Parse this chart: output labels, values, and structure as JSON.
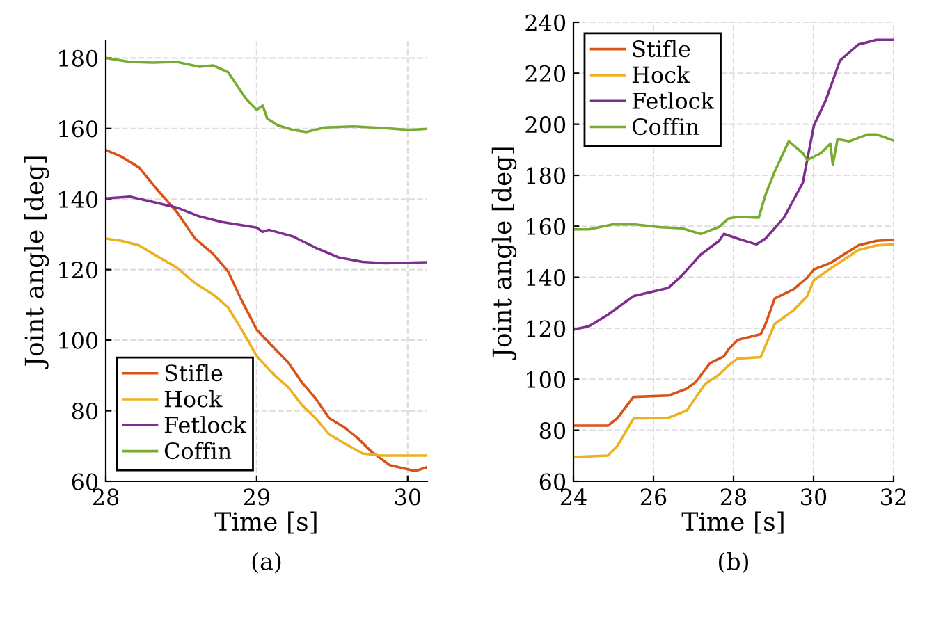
{
  "chart_data": [
    {
      "type": "line",
      "xlabel": "Time [s]",
      "ylabel": "Joint angle [deg]",
      "annotations": [
        "(a)"
      ],
      "xlim": [
        28,
        30.13
      ],
      "ylim": [
        60,
        185
      ],
      "xticks": [
        28,
        29,
        30
      ],
      "yticks": [
        60,
        80,
        100,
        120,
        140,
        160,
        180
      ],
      "grid": true,
      "legend": "bottom left",
      "line_style": "solid",
      "series": [
        {
          "name": "Stifle",
          "color": "#d95319",
          "x": [
            28,
            28.1,
            28.22,
            28.34,
            28.47,
            28.59,
            28.71,
            28.81,
            28.9,
            29,
            29.11,
            29.21,
            29.3,
            29.39,
            29.48,
            29.58,
            29.67,
            29.76,
            29.88,
            30.01,
            30.05,
            30.12
          ],
          "values": [
            153.9,
            152.1,
            149,
            142.7,
            136.4,
            128.9,
            124.5,
            119.5,
            111.3,
            103,
            98,
            93.6,
            88,
            83.5,
            77.9,
            75.3,
            72.2,
            68.4,
            64.6,
            63.3,
            62.9,
            63.9
          ]
        },
        {
          "name": "Hock",
          "color": "#edb120",
          "x": [
            28,
            28.1,
            28.22,
            28.34,
            28.47,
            28.59,
            28.71,
            28.81,
            28.9,
            29,
            29.11,
            29.21,
            29.3,
            29.39,
            29.48,
            29.58,
            29.7,
            29.82,
            30.12
          ],
          "values": [
            128.8,
            128.2,
            126.9,
            123.8,
            120.6,
            116.2,
            113,
            109.3,
            103,
            95.5,
            90.4,
            86.6,
            81.6,
            77.9,
            73.3,
            70.8,
            67.9,
            67.3,
            67.3
          ]
        },
        {
          "name": "Fetlock",
          "color": "#7e2f8e",
          "x": [
            28,
            28.16,
            28.31,
            28.47,
            28.62,
            28.77,
            29,
            29.04,
            29.08,
            29.24,
            29.39,
            29.54,
            29.7,
            29.85,
            30.12
          ],
          "values": [
            140.2,
            140.7,
            139.2,
            137.6,
            135.1,
            133.5,
            131.9,
            130.7,
            131.3,
            129.4,
            126.2,
            123.5,
            122.2,
            121.8,
            122.1
          ]
        },
        {
          "name": "Coffin",
          "color": "#77ac30",
          "x": [
            28,
            28.16,
            28.31,
            28.47,
            28.62,
            28.71,
            28.81,
            28.87,
            28.93,
            29,
            29.04,
            29.07,
            29.14,
            29.24,
            29.33,
            29.45,
            29.64,
            29.85,
            30.01,
            30.12
          ],
          "values": [
            180,
            178.9,
            178.7,
            178.9,
            177.5,
            177.9,
            176,
            172.2,
            168.4,
            165.3,
            166.5,
            162.8,
            160.9,
            159.6,
            159,
            160.3,
            160.6,
            160.1,
            159.6,
            159.9
          ]
        }
      ]
    },
    {
      "type": "line",
      "xlabel": "Time [s]",
      "ylabel": "Joint angle [deg]",
      "annotations": [
        "(b)"
      ],
      "xlim": [
        24,
        32
      ],
      "ylim": [
        60,
        240
      ],
      "xticks": [
        24,
        26,
        28,
        30,
        32
      ],
      "yticks": [
        60,
        80,
        100,
        120,
        140,
        160,
        180,
        200,
        220,
        240
      ],
      "grid": true,
      "legend": "top left",
      "line_style": "solid",
      "series": [
        {
          "name": "Stifle",
          "color": "#d95319",
          "x": [
            24,
            24.86,
            25.09,
            25.5,
            26.37,
            26.83,
            27.06,
            27.41,
            27.76,
            27.87,
            28.1,
            28.68,
            28.8,
            29.03,
            29.5,
            29.84,
            30.01,
            30.42,
            31.12,
            31.58,
            32
          ],
          "values": [
            81.8,
            81.8,
            84.6,
            93.1,
            93.6,
            96.3,
            99,
            106.3,
            109,
            111.7,
            115.4,
            117.7,
            121.7,
            131.7,
            135.3,
            139.8,
            143.1,
            145.6,
            152.5,
            154.3,
            154.7
          ]
        },
        {
          "name": "Hock",
          "color": "#edb120",
          "x": [
            24,
            24.86,
            25.09,
            25.5,
            26.37,
            26.83,
            27.29,
            27.64,
            27.87,
            28.1,
            28.68,
            29.03,
            29.5,
            29.84,
            30.01,
            30.42,
            31.12,
            31.58,
            32
          ],
          "values": [
            69.5,
            70.1,
            73.7,
            84.6,
            84.9,
            87.7,
            98.2,
            101.8,
            105.4,
            108.1,
            108.7,
            121.7,
            127.1,
            132.6,
            138.9,
            143.4,
            150.7,
            152.5,
            152.9
          ]
        },
        {
          "name": "Fetlock",
          "color": "#7e2f8e",
          "x": [
            24,
            24.39,
            24.86,
            25.5,
            26.37,
            26.71,
            27.18,
            27.64,
            27.76,
            28.1,
            28.57,
            28.8,
            29.26,
            29.73,
            30.01,
            30.31,
            30.66,
            31.12,
            31.58,
            32
          ],
          "values": [
            119.5,
            120.8,
            125.3,
            132.6,
            135.8,
            140.7,
            148.9,
            154.3,
            157,
            155.2,
            152.9,
            155.2,
            163.4,
            177,
            199.6,
            209.6,
            225,
            231.3,
            233.1,
            233.1
          ]
        },
        {
          "name": "Coffin",
          "color": "#77ac30",
          "x": [
            24,
            24.39,
            24.97,
            25.55,
            26.13,
            26.71,
            27.18,
            27.64,
            27.87,
            28.1,
            28.63,
            28.8,
            29.03,
            29.38,
            29.73,
            29.84,
            30.19,
            30.42,
            30.48,
            30.6,
            30.89,
            31.35,
            31.58,
            32
          ],
          "values": [
            158.8,
            158.8,
            160.7,
            160.7,
            159.7,
            159.2,
            157,
            159.7,
            163,
            163.7,
            163.4,
            172.4,
            181.5,
            193.3,
            188.7,
            186,
            188.7,
            192.4,
            184.2,
            194.2,
            193.3,
            196,
            196,
            193.6
          ]
        }
      ]
    }
  ]
}
